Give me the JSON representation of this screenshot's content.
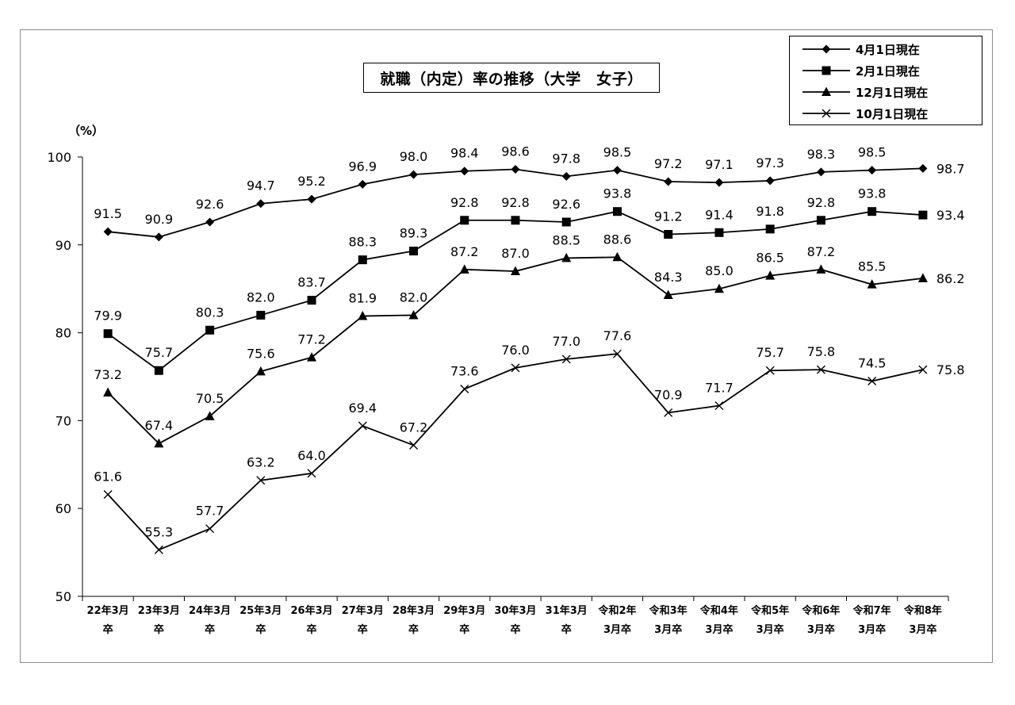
{
  "chart_data": {
    "type": "line",
    "title": "就職（内定）率の推移（大学　女子）",
    "ylabel": "（%）",
    "ylim": [
      50,
      100
    ],
    "yticks": [
      "50",
      "60",
      "70",
      "80",
      "90",
      "100"
    ],
    "grid": false,
    "legend_position": "top-right",
    "categories": [
      [
        "22年3月",
        "卒"
      ],
      [
        "23年3月",
        "卒"
      ],
      [
        "24年3月",
        "卒"
      ],
      [
        "25年3月",
        "卒"
      ],
      [
        "26年3月",
        "卒"
      ],
      [
        "27年3月",
        "卒"
      ],
      [
        "28年3月",
        "卒"
      ],
      [
        "29年3月",
        "卒"
      ],
      [
        "30年3月",
        "卒"
      ],
      [
        "31年3月",
        "卒"
      ],
      [
        "令和2年",
        "3月卒"
      ],
      [
        "令和3年",
        "3月卒"
      ],
      [
        "令和4年",
        "3月卒"
      ],
      [
        "令和5年",
        "3月卒"
      ],
      [
        "令和6年",
        "3月卒"
      ],
      [
        "令和7年",
        "3月卒"
      ],
      [
        "令和8年",
        "3月卒"
      ]
    ],
    "series": [
      {
        "name": "4月1日現在",
        "marker": "diamond",
        "values": [
          91.5,
          90.9,
          92.6,
          94.7,
          95.2,
          96.9,
          98.0,
          98.4,
          98.6,
          97.8,
          98.5,
          97.2,
          97.1,
          97.3,
          98.3,
          98.5,
          98.7
        ],
        "labels": [
          "91.5",
          "90.9",
          "92.6",
          "94.7",
          "95.2",
          "96.9",
          "98.0",
          "98.4",
          "98.6",
          "97.8",
          "98.5",
          "97.2",
          "97.1",
          "97.3",
          "98.3",
          "98.5",
          "98.7"
        ]
      },
      {
        "name": "2月1日現在",
        "marker": "square",
        "values": [
          79.9,
          75.7,
          80.3,
          82.0,
          83.7,
          88.3,
          89.3,
          92.8,
          92.8,
          92.6,
          93.8,
          91.2,
          91.4,
          91.8,
          92.8,
          93.8,
          93.4
        ],
        "labels": [
          "79.9",
          "75.7",
          "80.3",
          "82.0",
          "83.7",
          "88.3",
          "89.3",
          "92.8",
          "92.8",
          "92.6",
          "93.8",
          "91.2",
          "91.4",
          "91.8",
          "92.8",
          "93.8",
          "93.4"
        ]
      },
      {
        "name": "12月1日現在",
        "marker": "triangle",
        "values": [
          73.2,
          67.4,
          70.5,
          75.6,
          77.2,
          81.9,
          82.0,
          87.2,
          87.0,
          88.5,
          88.6,
          84.3,
          85.0,
          86.5,
          87.2,
          85.5,
          86.2
        ],
        "labels": [
          "73.2",
          "67.4",
          "70.5",
          "75.6",
          "77.2",
          "81.9",
          "82.0",
          "87.2",
          "87.0",
          "88.5",
          "88.6",
          "84.3",
          "85.0",
          "86.5",
          "87.2",
          "85.5",
          "86.2"
        ]
      },
      {
        "name": "10月1日現在",
        "marker": "x",
        "values": [
          61.6,
          55.3,
          57.7,
          63.2,
          64.0,
          69.4,
          67.2,
          73.6,
          76.0,
          77.0,
          77.6,
          70.9,
          71.7,
          75.7,
          75.8,
          74.5,
          75.8
        ],
        "labels": [
          "61.6",
          "55.3",
          "57.7",
          "63.2",
          "64.0",
          "69.4",
          "67.2",
          "73.6",
          "76.0",
          "77.0",
          "77.6",
          "70.9",
          "71.7",
          "75.7",
          "75.8",
          "74.5",
          "75.8"
        ]
      }
    ]
  },
  "colors": {
    "series_line": "#000000",
    "frame_border": "#8c8c8c",
    "background": "#ffffff"
  }
}
